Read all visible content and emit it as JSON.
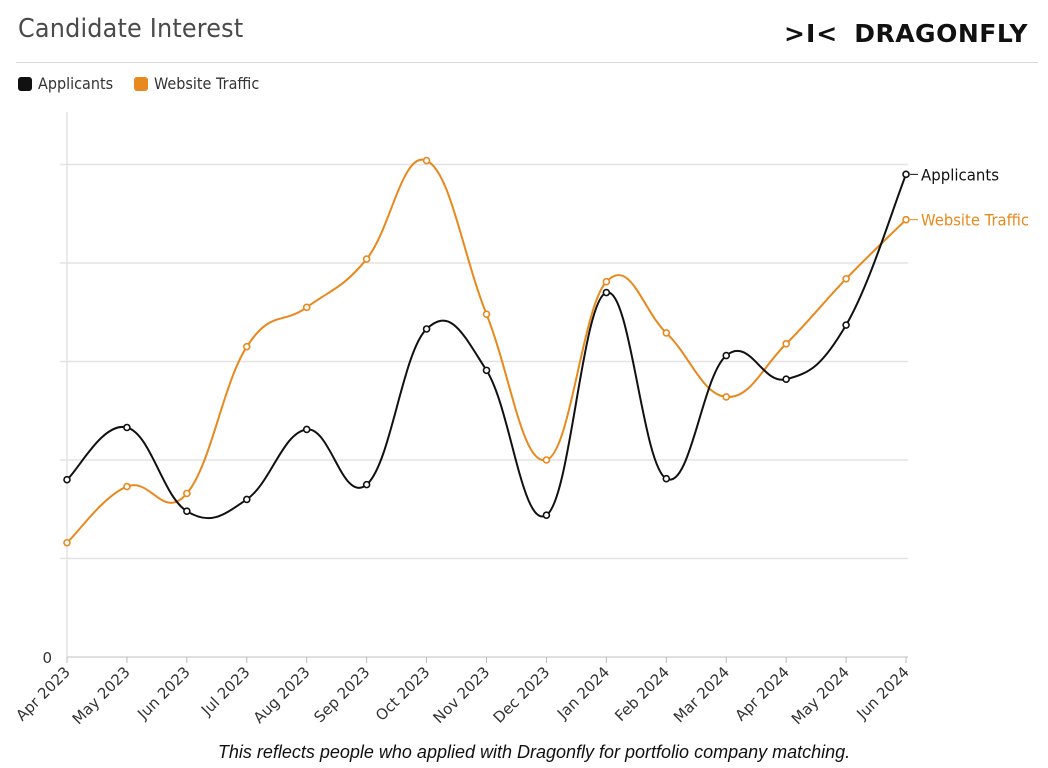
{
  "header": {
    "title": "Candidate Interest",
    "brand_mark": ">I<",
    "brand_name": "DRAGONFLY"
  },
  "legend": {
    "items": [
      {
        "label": "Applicants",
        "color": "#111111"
      },
      {
        "label": "Website Traffic",
        "color": "#e8891e"
      }
    ]
  },
  "caption": "This reflects people who applied with Dragonfly for portfolio company matching.",
  "chart_data": {
    "type": "line",
    "title": "Candidate Interest",
    "xlabel": "",
    "ylabel": "",
    "categories": [
      "Apr 2023",
      "May 2023",
      "Jun 2023",
      "Jul 2023",
      "Aug 2023",
      "Sep 2023",
      "Oct 2023",
      "Nov 2023",
      "Dec 2023",
      "Jan 2024",
      "Feb 2024",
      "Mar 2024",
      "Apr 2024",
      "May 2024",
      "Jun 2024"
    ],
    "y_tick_labels": [
      "0"
    ],
    "grid": true,
    "legend_position": "top-left",
    "y_axis_note": "only the 0 tick is labeled; values are in relative units where one gridline step = 1",
    "ylim": [
      0,
      5.5
    ],
    "series": [
      {
        "name": "Applicants",
        "color": "#111111",
        "values": [
          1.8,
          2.33,
          1.48,
          1.6,
          2.31,
          1.75,
          3.33,
          2.91,
          1.44,
          3.7,
          1.81,
          3.06,
          2.82,
          3.37,
          4.9
        ],
        "end_label": "Applicants"
      },
      {
        "name": "Website Traffic",
        "color": "#e8891e",
        "values": [
          1.16,
          1.73,
          1.66,
          3.15,
          3.55,
          4.04,
          5.04,
          3.48,
          2.0,
          3.81,
          3.29,
          2.64,
          3.18,
          3.84,
          4.44
        ],
        "end_label": "Website Traffic"
      }
    ]
  }
}
